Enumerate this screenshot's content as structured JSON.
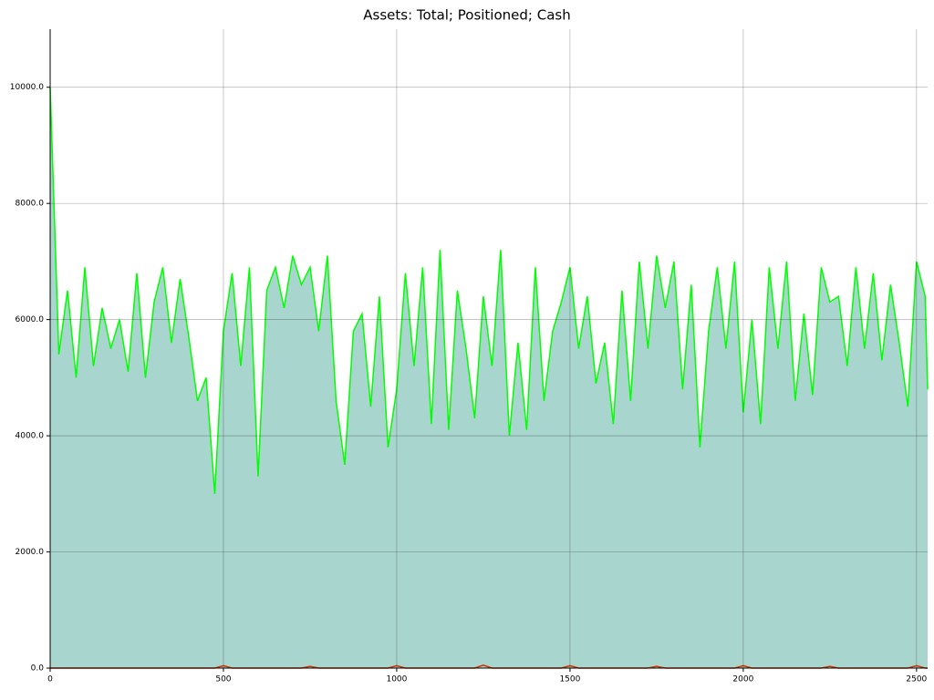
{
  "chart_data": {
    "type": "line",
    "title": "Assets: Total; Positioned; Cash",
    "x": [
      0,
      25,
      50,
      75,
      100,
      125,
      150,
      175,
      200,
      225,
      250,
      275,
      300,
      325,
      350,
      375,
      400,
      425,
      450,
      475,
      500,
      525,
      550,
      575,
      600,
      625,
      650,
      675,
      700,
      725,
      750,
      775,
      800,
      825,
      850,
      875,
      900,
      925,
      950,
      975,
      1000,
      1025,
      1050,
      1075,
      1100,
      1125,
      1150,
      1175,
      1200,
      1225,
      1250,
      1275,
      1300,
      1325,
      1350,
      1375,
      1400,
      1425,
      1450,
      1475,
      1500,
      1525,
      1550,
      1575,
      1600,
      1625,
      1650,
      1675,
      1700,
      1725,
      1750,
      1775,
      1800,
      1825,
      1850,
      1875,
      1900,
      1925,
      1950,
      1975,
      2000,
      2025,
      2050,
      2075,
      2100,
      2125,
      2150,
      2175,
      2200,
      2225,
      2250,
      2275,
      2300,
      2325,
      2350,
      2375,
      2400,
      2425,
      2450,
      2475,
      2500,
      2525,
      2532
    ],
    "series": [
      {
        "color": "#a8d5cd",
        "fill": true,
        "values": [
          10000,
          5400,
          6500,
          5000,
          6900,
          5200,
          6200,
          5500,
          6000,
          5100,
          6800,
          5000,
          6300,
          6900,
          5600,
          6700,
          5700,
          4600,
          5000,
          3000,
          5760,
          6800,
          5200,
          6900,
          3300,
          6500,
          6900,
          6200,
          7100,
          6600,
          6870,
          5800,
          7100,
          4600,
          3500,
          5800,
          6100,
          4500,
          6400,
          3800,
          4760,
          6800,
          5200,
          6900,
          4200,
          7200,
          4100,
          6500,
          5500,
          4300,
          6350,
          5200,
          7200,
          4000,
          5600,
          4100,
          6900,
          4600,
          5800,
          6300,
          6860,
          5500,
          6400,
          4900,
          5600,
          4200,
          6500,
          4600,
          7000,
          5500,
          7070,
          6200,
          7000,
          4800,
          6600,
          3800,
          5800,
          6900,
          5500,
          7000,
          4360,
          6000,
          4200,
          6900,
          5500,
          7000,
          4600,
          6100,
          4700,
          6900,
          6270,
          6400,
          5200,
          6900,
          5500,
          6800,
          5300,
          6600,
          5600,
          4500,
          6960,
          6400,
          4800
        ]
      },
      {
        "color": "#00ff00",
        "values": [
          10000,
          5400,
          6500,
          5000,
          6900,
          5200,
          6200,
          5500,
          6000,
          5100,
          6800,
          5000,
          6300,
          6900,
          5600,
          6700,
          5700,
          4600,
          5000,
          3000,
          5800,
          6800,
          5200,
          6900,
          3300,
          6500,
          6900,
          6200,
          7100,
          6600,
          6900,
          5800,
          7100,
          4600,
          3500,
          5800,
          6100,
          4500,
          6400,
          3800,
          4800,
          6800,
          5200,
          6900,
          4200,
          7200,
          4100,
          6500,
          5500,
          4300,
          6400,
          5200,
          7200,
          4000,
          5600,
          4100,
          6900,
          4600,
          5800,
          6300,
          6900,
          5500,
          6400,
          4900,
          5600,
          4200,
          6500,
          4600,
          7000,
          5500,
          7100,
          6200,
          7000,
          4800,
          6600,
          3800,
          5800,
          6900,
          5500,
          7000,
          4400,
          6000,
          4200,
          6900,
          5500,
          7000,
          4600,
          6100,
          4700,
          6900,
          6300,
          6400,
          5200,
          6900,
          5500,
          6800,
          5300,
          6600,
          5600,
          4500,
          7000,
          6400,
          4800
        ]
      },
      {
        "color": "#cc3300",
        "values": [
          0,
          0,
          0,
          0,
          0,
          0,
          0,
          0,
          0,
          0,
          0,
          0,
          0,
          0,
          0,
          0,
          0,
          0,
          0,
          0,
          40,
          0,
          0,
          0,
          0,
          0,
          0,
          0,
          0,
          0,
          30,
          0,
          0,
          0,
          0,
          0,
          0,
          0,
          0,
          0,
          40,
          0,
          0,
          0,
          0,
          0,
          0,
          0,
          0,
          0,
          50,
          0,
          0,
          0,
          0,
          0,
          0,
          0,
          0,
          0,
          40,
          0,
          0,
          0,
          0,
          0,
          0,
          0,
          0,
          0,
          30,
          0,
          0,
          0,
          0,
          0,
          0,
          0,
          0,
          0,
          40,
          0,
          0,
          0,
          0,
          0,
          0,
          0,
          0,
          0,
          30,
          0,
          0,
          0,
          0,
          0,
          0,
          0,
          0,
          0,
          40,
          0,
          0
        ]
      }
    ],
    "xlim": [
      0,
      2532
    ],
    "xticks": [
      0,
      500,
      1000,
      1500,
      2000,
      2500
    ],
    "ylim": [
      0,
      11000
    ],
    "yticks": [
      {
        "value": 0,
        "label": "0.0"
      },
      {
        "value": 2000,
        "label": "2000.0"
      },
      {
        "value": 4000,
        "label": "4000.0"
      },
      {
        "value": 6000,
        "label": "6000.0"
      },
      {
        "value": 8000,
        "label": "8000.0"
      },
      {
        "value": 10000,
        "label": "10000.0"
      }
    ],
    "grid": true
  }
}
